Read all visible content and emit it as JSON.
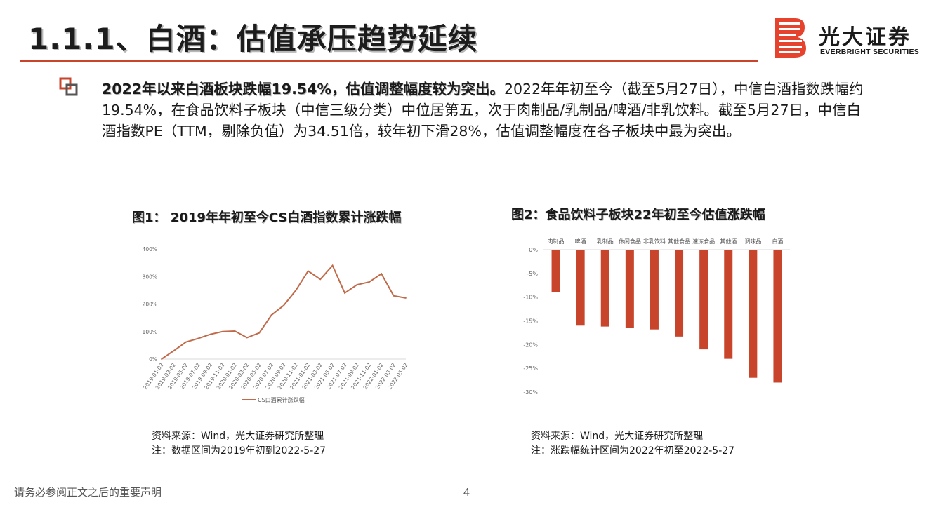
{
  "header": {
    "title": "1.1.1、白酒：估值承压趋势延续"
  },
  "logo": {
    "name_cn": "光大证券",
    "name_en": "EVERBRIGHT SECURITIES"
  },
  "summary": {
    "highlight": "2022年以来白酒板块跌幅19.54%，估值调整幅度较为突出。",
    "body": "2022年年初至今（截至5月27日），中信白酒指数跌幅约19.54%，在食品饮料子板块（中信三级分类）中位居第五，次于肉制品/乳制品/啤酒/非乳饮料。截至5月27日，中信白酒指数PE（TTM，剔除负值）为34.51倍，较年初下滑28%，估值调整幅度在各子板块中最为突出。"
  },
  "figures": {
    "fig1": {
      "title": "图1：  2019年年初至今CS白酒指数累计涨跌幅",
      "source": "资料来源：Wind，光大证券研究所整理",
      "note": "注：数据区间为2019年初到2022-5-27"
    },
    "fig2": {
      "title": "图2：食品饮料子板块22年初至今估值涨跌幅",
      "source": "资料来源：Wind，光大证券研究所整理",
      "note": "注：涨跌幅统计区间为2022年初至2022-5-27"
    }
  },
  "footer": {
    "disclaimer": "请务必参阅正文之后的重要声明",
    "page": "4"
  },
  "colors": {
    "accent": "#c8452c",
    "bar": "#c8452c",
    "line": "#c06a4a"
  },
  "chart_data": [
    {
      "type": "line",
      "legend": "CS白酒累计涨跌幅",
      "ylim": [
        0,
        400
      ],
      "yticks": [
        "0%",
        "100%",
        "200%",
        "300%",
        "400%"
      ],
      "x": [
        "2019-01-02",
        "2019-03-02",
        "2019-05-02",
        "2019-07-02",
        "2019-09-02",
        "2019-11-02",
        "2020-01-02",
        "2020-03-02",
        "2020-05-02",
        "2020-07-02",
        "2020-09-02",
        "2020-11-02",
        "2021-01-02",
        "2021-03-02",
        "2021-05-02",
        "2021-07-02",
        "2021-09-02",
        "2021-11-02",
        "2022-01-02",
        "2022-03-02",
        "2022-05-02"
      ],
      "series": [
        {
          "name": "CS白酒累计涨跌幅",
          "values": [
            0,
            30,
            62,
            75,
            90,
            100,
            102,
            78,
            95,
            160,
            195,
            250,
            320,
            290,
            340,
            240,
            270,
            280,
            310,
            230,
            222
          ]
        }
      ]
    },
    {
      "type": "bar",
      "categories": [
        "肉制品",
        "啤酒",
        "乳制品",
        "休闲食品",
        "非乳饮料",
        "其他食品",
        "速冻食品",
        "其他酒",
        "调味品",
        "白酒"
      ],
      "values": [
        -9,
        -16,
        -16.2,
        -16.5,
        -16.8,
        -18.3,
        -21,
        -23,
        -27,
        -28
      ],
      "ylim": [
        -30,
        0
      ],
      "yticks": [
        "0%",
        "-5%",
        "-10%",
        "-15%",
        "-20%",
        "-25%",
        "-30%"
      ]
    }
  ]
}
